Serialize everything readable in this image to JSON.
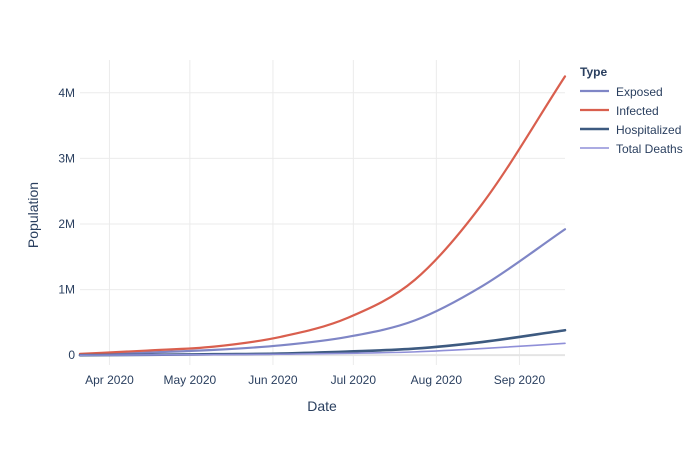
{
  "chart_data": {
    "type": "line",
    "xlabel": "Date",
    "ylabel": "Population",
    "x_start": "2020-03-21",
    "x_end": "2020-09-18",
    "xlim": [
      "2020-03-21",
      "2020-09-18"
    ],
    "ylim": [
      -150000,
      4500000
    ],
    "x_ticks": [
      {
        "date": "2020-04-01",
        "label": "Apr 2020"
      },
      {
        "date": "2020-05-01",
        "label": "May 2020"
      },
      {
        "date": "2020-06-01",
        "label": "Jun 2020"
      },
      {
        "date": "2020-07-01",
        "label": "Jul 2020"
      },
      {
        "date": "2020-08-01",
        "label": "Aug 2020"
      },
      {
        "date": "2020-09-01",
        "label": "Sep 2020"
      }
    ],
    "y_ticks": [
      {
        "value": 0,
        "label": "0"
      },
      {
        "value": 1000000,
        "label": "1M"
      },
      {
        "value": 2000000,
        "label": "2M"
      },
      {
        "value": 3000000,
        "label": "3M"
      },
      {
        "value": 4000000,
        "label": "4M"
      }
    ],
    "grid": true,
    "legend": {
      "title": "Type",
      "position": "right"
    },
    "x": [
      "2020-03-21",
      "2020-04-15",
      "2020-05-10",
      "2020-06-04",
      "2020-06-29",
      "2020-07-24",
      "2020-08-18",
      "2020-09-18"
    ],
    "series": [
      {
        "name": "Exposed",
        "color": "#7f86c6",
        "width": 2.2,
        "values": [
          10000,
          40000,
          80000,
          150000,
          280000,
          530000,
          1050000,
          1920000
        ]
      },
      {
        "name": "Infected",
        "color": "#d95f4e",
        "width": 2.2,
        "values": [
          20000,
          70000,
          130000,
          280000,
          570000,
          1150000,
          2300000,
          4250000
        ]
      },
      {
        "name": "Hospitalized",
        "color": "#3d5a80",
        "width": 2.6,
        "values": [
          0,
          5000,
          15000,
          25000,
          55000,
          100000,
          200000,
          380000
        ]
      },
      {
        "name": "Total Deaths",
        "color": "#8f8fd8",
        "width": 1.6,
        "values": [
          0,
          3000,
          8000,
          14000,
          28000,
          50000,
          100000,
          180000
        ]
      }
    ]
  }
}
